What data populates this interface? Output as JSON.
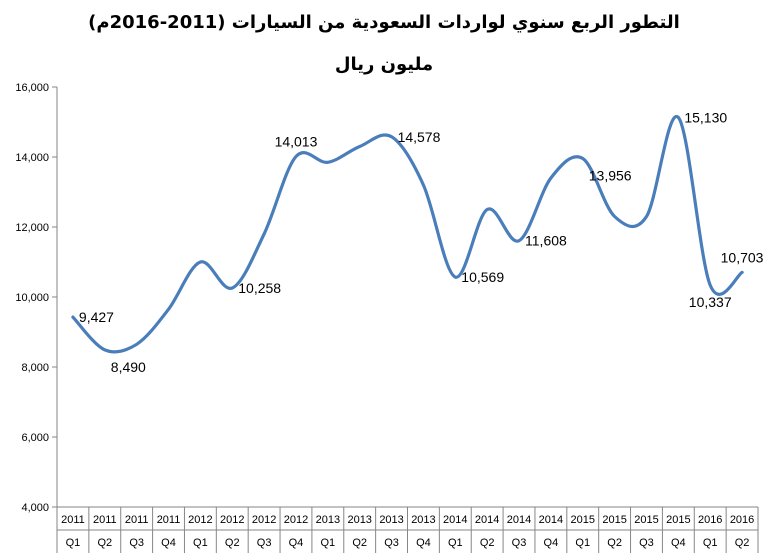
{
  "chart_data": {
    "type": "line",
    "title": "التطور الربع سنوي لواردات السعودية من السيارات (2011-2016م)",
    "subtitle": "مليون ريال",
    "xlabel": "",
    "ylabel": "",
    "ylim": [
      4000,
      16000
    ],
    "yticks": [
      "4,000",
      "6,000",
      "8,000",
      "10,000",
      "12,000",
      "14,000",
      "16,000"
    ],
    "grid": false,
    "legend": "none",
    "line_color": "#4a7ebb",
    "categories": [
      {
        "year": "2011",
        "q": "Q1"
      },
      {
        "year": "2011",
        "q": "Q2"
      },
      {
        "year": "2011",
        "q": "Q3"
      },
      {
        "year": "2011",
        "q": "Q4"
      },
      {
        "year": "2012",
        "q": "Q1"
      },
      {
        "year": "2012",
        "q": "Q2"
      },
      {
        "year": "2012",
        "q": "Q3"
      },
      {
        "year": "2012",
        "q": "Q4"
      },
      {
        "year": "2013",
        "q": "Q1"
      },
      {
        "year": "2013",
        "q": "Q2"
      },
      {
        "year": "2013",
        "q": "Q3"
      },
      {
        "year": "2013",
        "q": "Q4"
      },
      {
        "year": "2014",
        "q": "Q1"
      },
      {
        "year": "2014",
        "q": "Q2"
      },
      {
        "year": "2014",
        "q": "Q3"
      },
      {
        "year": "2014",
        "q": "Q4"
      },
      {
        "year": "2015",
        "q": "Q1"
      },
      {
        "year": "2015",
        "q": "Q2"
      },
      {
        "year": "2015",
        "q": "Q3"
      },
      {
        "year": "2015",
        "q": "Q4"
      },
      {
        "year": "2016",
        "q": "Q1"
      },
      {
        "year": "2016",
        "q": "Q2"
      }
    ],
    "values": [
      9427,
      8490,
      8650,
      9650,
      11000,
      10258,
      11800,
      14013,
      13850,
      14300,
      14578,
      13200,
      10569,
      12500,
      11608,
      13400,
      13956,
      12300,
      12300,
      15130,
      10337,
      10703
    ],
    "data_labels": [
      {
        "index": 0,
        "text": "9,427",
        "pos": "right"
      },
      {
        "index": 1,
        "text": "8,490",
        "pos": "below-right"
      },
      {
        "index": 5,
        "text": "10,258",
        "pos": "right"
      },
      {
        "index": 7,
        "text": "14,013",
        "pos": "above"
      },
      {
        "index": 10,
        "text": "14,578",
        "pos": "right"
      },
      {
        "index": 12,
        "text": "10,569",
        "pos": "right"
      },
      {
        "index": 14,
        "text": "11,608",
        "pos": "right"
      },
      {
        "index": 16,
        "text": "13,956",
        "pos": "below-right"
      },
      {
        "index": 19,
        "text": "15,130",
        "pos": "right"
      },
      {
        "index": 20,
        "text": "10,337",
        "pos": "below"
      },
      {
        "index": 21,
        "text": "10,703",
        "pos": "above"
      }
    ]
  }
}
